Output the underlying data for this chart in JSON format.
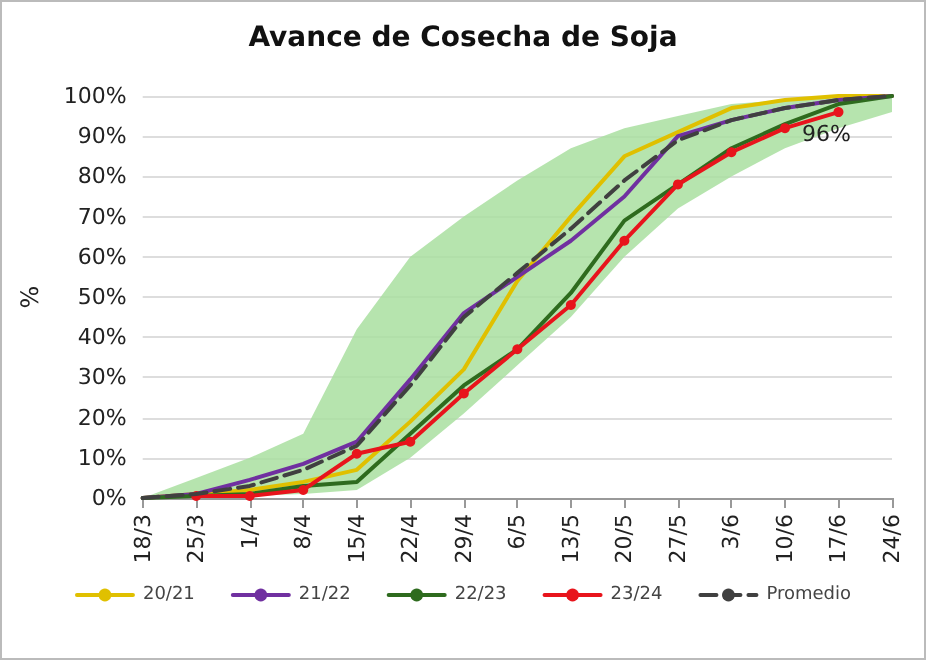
{
  "chart_data": {
    "type": "line",
    "title": "Avance de Cosecha de Soja",
    "ylabel": "%",
    "categories": [
      "18/3",
      "25/3",
      "1/4",
      "8/4",
      "15/4",
      "22/4",
      "29/4",
      "6/5",
      "13/5",
      "20/5",
      "27/5",
      "3/6",
      "10/6",
      "17/6",
      "24/6"
    ],
    "series": [
      {
        "name": "20/21",
        "color": "#e0c000",
        "values": [
          0,
          1,
          2,
          4,
          7,
          19,
          32,
          54,
          70,
          85,
          91,
          97,
          99,
          100,
          100
        ]
      },
      {
        "name": "21/22",
        "color": "#7030a0",
        "values": [
          0,
          1,
          4.5,
          8.5,
          14,
          29.5,
          46,
          55,
          64,
          75,
          90,
          94,
          97,
          99,
          100
        ]
      },
      {
        "name": "22/23",
        "color": "#2e6b1e",
        "values": [
          0,
          0.5,
          1,
          3,
          4,
          16,
          28,
          37,
          51,
          69,
          78,
          87,
          93,
          98,
          100
        ]
      },
      {
        "name": "23/24",
        "color": "#e8141c",
        "marker": "circle",
        "values": [
          null,
          0.5,
          0.5,
          2,
          11,
          14,
          26,
          37,
          48,
          64,
          78,
          86,
          92,
          96,
          null
        ],
        "value_labels": [
          null,
          null,
          null,
          null,
          null,
          null,
          null,
          null,
          null,
          null,
          null,
          null,
          null,
          "96%",
          null
        ]
      },
      {
        "name": "Promedio",
        "color": "#404040",
        "line_style": "dashed",
        "values": [
          0,
          1,
          3,
          7,
          13,
          28,
          45,
          56,
          67,
          79,
          89,
          94,
          97,
          99,
          100
        ],
        "lower": [
          0,
          0,
          0.5,
          1,
          2,
          10,
          21,
          33,
          45,
          60,
          72,
          80,
          87,
          92,
          96
        ],
        "upper": [
          0,
          5,
          10,
          16,
          42,
          60,
          70,
          79,
          87,
          92,
          95,
          98,
          99,
          100,
          100
        ]
      }
    ],
    "ylim": [
      0,
      100
    ],
    "yticks": [
      {
        "value": 0,
        "label": "0%"
      },
      {
        "value": 10,
        "label": "10%"
      },
      {
        "value": 20,
        "label": "20%"
      },
      {
        "value": 30,
        "label": "30%"
      },
      {
        "value": 40,
        "label": "40%"
      },
      {
        "value": 50,
        "label": "50%"
      },
      {
        "value": 60,
        "label": "60%"
      },
      {
        "value": 70,
        "label": "70%"
      },
      {
        "value": 80,
        "label": "80%"
      },
      {
        "value": 90,
        "label": "90%"
      },
      {
        "value": 100,
        "label": "100%"
      }
    ],
    "grid": "y",
    "legend": "bottom",
    "marker": "none",
    "line_style": "solid"
  }
}
